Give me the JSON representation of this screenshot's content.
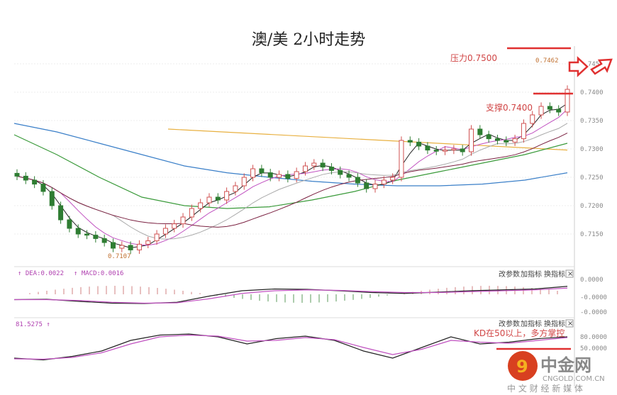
{
  "chart_data": {
    "type": "candlestick",
    "title": "澳/美 2小时走势",
    "yticks": [
      "0.745",
      "0.7400",
      "0.7350",
      "0.7300",
      "0.7250",
      "0.7200",
      "0.7150"
    ],
    "yvalues": [
      0.745,
      0.74,
      0.735,
      0.73,
      0.725,
      0.72,
      0.715
    ],
    "ylim": [
      0.7095,
      0.7485
    ],
    "closes": [
      0.7252,
      0.7245,
      0.7238,
      0.7225,
      0.72,
      0.7175,
      0.716,
      0.715,
      0.7148,
      0.7142,
      0.7135,
      0.7125,
      0.713,
      0.7122,
      0.7132,
      0.7138,
      0.715,
      0.716,
      0.7168,
      0.718,
      0.7195,
      0.7205,
      0.7215,
      0.721,
      0.7225,
      0.7235,
      0.725,
      0.7265,
      0.7258,
      0.725,
      0.7255,
      0.7248,
      0.726,
      0.727,
      0.7275,
      0.7268,
      0.7262,
      0.7255,
      0.725,
      0.724,
      0.723,
      0.7238,
      0.7245,
      0.725,
      0.7315,
      0.7312,
      0.7305,
      0.7298,
      0.7296,
      0.7298,
      0.73,
      0.7295,
      0.7335,
      0.7325,
      0.7318,
      0.7315,
      0.7312,
      0.7318,
      0.7345,
      0.736,
      0.7375,
      0.737,
      0.7365,
      0.7405
    ],
    "long_ma_blue": [
      0.7345,
      0.733,
      0.731,
      0.729,
      0.727,
      0.7258,
      0.725,
      0.7243,
      0.7238,
      0.7235,
      0.7235,
      0.7238,
      0.7245,
      0.7258
    ],
    "long_ma_green": [
      0.7325,
      0.729,
      0.725,
      0.7215,
      0.72,
      0.7195,
      0.7198,
      0.721,
      0.7225,
      0.7245,
      0.726,
      0.7275,
      0.729,
      0.731
    ],
    "orange_line": [
      0.7335,
      0.7298
    ],
    "annotations": {
      "resistance": "压力0.7500",
      "support": "支撑0.7400",
      "high": "0.7462",
      "low": "0.7107",
      "kd_note": "KD在50以上，多方掌控"
    },
    "macd": {
      "dea_label": "DEA:0.0022",
      "macd_label": "MACD:0.0016",
      "yticks": [
        "0.0000",
        "-0.0000",
        "-0.0000"
      ],
      "dif": [
        -0.3,
        -0.28,
        -0.4,
        -0.5,
        -0.52,
        -0.45,
        -0.1,
        0.2,
        0.3,
        0.28,
        0.2,
        0.1,
        0.05,
        0.12,
        0.2,
        0.25,
        0.3,
        0.45
      ],
      "dea": [
        -0.3,
        -0.3,
        -0.35,
        -0.45,
        -0.5,
        -0.48,
        -0.25,
        0.05,
        0.2,
        0.25,
        0.22,
        0.15,
        0.1,
        0.1,
        0.15,
        0.2,
        0.25,
        0.35
      ]
    },
    "kd": {
      "value_label": "81.5275",
      "yticks": [
        "80.0000",
        "50.0000"
      ],
      "k": [
        20,
        15,
        25,
        40,
        70,
        85,
        88,
        80,
        60,
        75,
        82,
        70,
        40,
        20,
        50,
        80,
        60,
        65,
        75,
        80
      ],
      "d": [
        18,
        17,
        22,
        35,
        60,
        80,
        85,
        82,
        68,
        70,
        78,
        72,
        50,
        30,
        45,
        70,
        65,
        62,
        70,
        78
      ]
    }
  },
  "toolbar": {
    "params": "改参数",
    "add": "加指标",
    "switch": "换指标",
    "close": "×"
  },
  "watermark": {
    "name": "中金网",
    "url": "CNGOLD.COM.CN",
    "slogan": "中 文 财 经 新 媒 体"
  },
  "colors": {
    "up": "#d05050",
    "down": "#2e7d32",
    "red": "#e03030"
  }
}
